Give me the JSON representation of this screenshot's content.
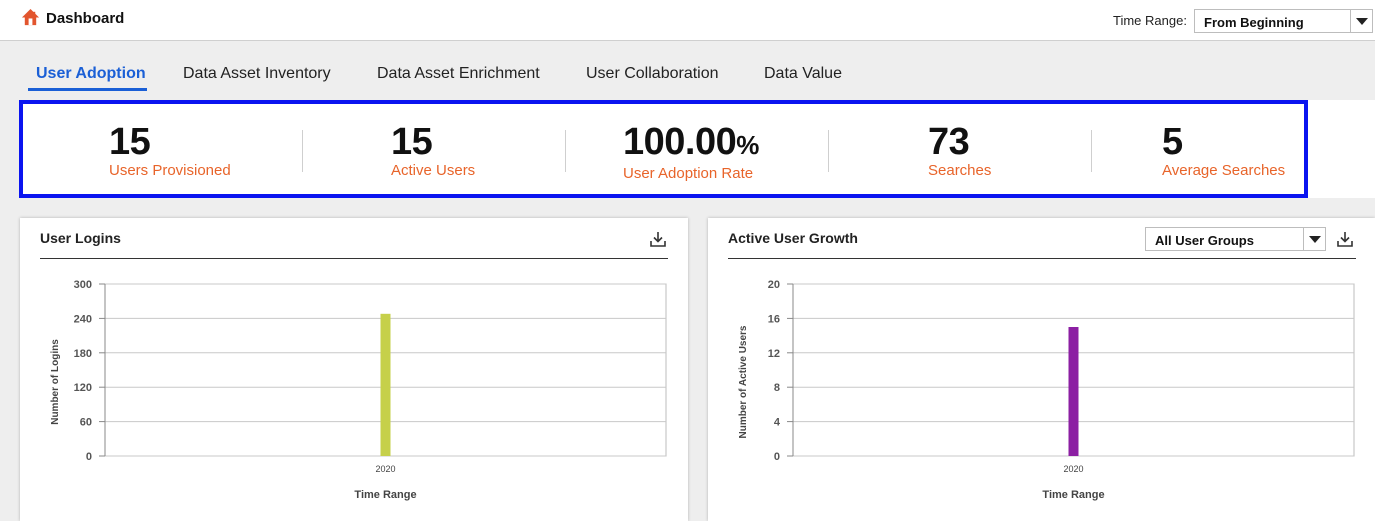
{
  "header": {
    "title": "Dashboard",
    "time_range_label": "Time Range:",
    "time_range_value": "From Beginning"
  },
  "tabs": [
    {
      "label": "User Adoption",
      "active": true
    },
    {
      "label": "Data Asset Inventory",
      "active": false
    },
    {
      "label": "Data Asset Enrichment",
      "active": false
    },
    {
      "label": "User Collaboration",
      "active": false
    },
    {
      "label": "Data Value",
      "active": false
    }
  ],
  "kpis": [
    {
      "value": "15",
      "suffix": "",
      "label": "Users Provisioned"
    },
    {
      "value": "15",
      "suffix": "",
      "label": "Active Users"
    },
    {
      "value": "100.00",
      "suffix": "%",
      "label": "User Adoption Rate"
    },
    {
      "value": "73",
      "suffix": "",
      "label": "Searches"
    },
    {
      "value": "5",
      "suffix": "",
      "label": "Average Searches"
    }
  ],
  "panels": {
    "logins": {
      "title": "User Logins"
    },
    "growth": {
      "title": "Active User Growth",
      "group_filter": "All User Groups"
    }
  },
  "colors": {
    "accent": "#1a5fd6",
    "kpi_label": "#e8642a",
    "kpi_border": "#0a14f0",
    "logins_bar": "#c6d04a",
    "growth_bar": "#8c1fa3"
  },
  "icons": {
    "home": "home-icon",
    "download": "download-icon",
    "dropdown": "chevron-down-icon"
  },
  "chart_data": [
    {
      "type": "bar",
      "title": "",
      "xlabel": "Time Range",
      "ylabel": "Number of Logins",
      "categories": [
        "2020"
      ],
      "values": [
        248
      ],
      "ylim": [
        0,
        300
      ],
      "yticks": [
        0,
        60,
        120,
        180,
        240,
        300
      ],
      "grid": true,
      "color": "#c6d04a"
    },
    {
      "type": "bar",
      "title": "",
      "xlabel": "Time Range",
      "ylabel": "Number of Active Users",
      "categories": [
        "2020"
      ],
      "values": [
        15
      ],
      "ylim": [
        0,
        20
      ],
      "yticks": [
        0,
        4,
        8,
        12,
        16,
        20
      ],
      "grid": true,
      "color": "#8c1fa3"
    }
  ]
}
